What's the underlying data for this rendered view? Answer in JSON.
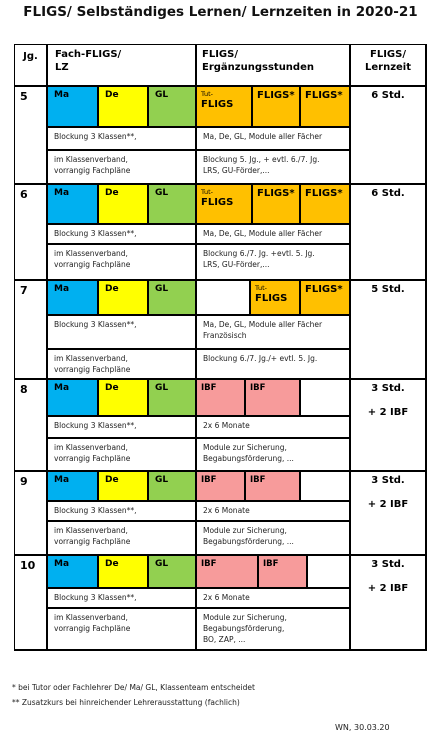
{
  "title": "FLIGS/ Selbständiges Lernen/ Lernzeiten in 2020-21",
  "header": {
    "jg": "Jg.",
    "fach": [
      "Fach-FLIGS/",
      "LZ"
    ],
    "erg": [
      "FLIGS/",
      "Ergänzungsstunden"
    ],
    "lernzeit": [
      "FLIGS/",
      "Lernzeit"
    ]
  },
  "grades": [
    {
      "jg": "5",
      "fach": [
        {
          "text": "Ma",
          "color": "#00b0f0"
        },
        {
          "text": "De",
          "color": "#ffff00"
        },
        {
          "text": "GL",
          "color": "#92d050"
        }
      ],
      "erg": [
        {
          "tut": "Tut-",
          "text": "FLIGS",
          "color": "#ffc000"
        },
        {
          "text": "FLIGS*",
          "color": "#ffc000"
        },
        {
          "text": "FLIGS*",
          "color": "#ffc000"
        }
      ],
      "lernzeit": [
        "6 Std."
      ],
      "blockung": [
        "Blockung 3 Klassen**,"
      ],
      "blockung_erg": [
        "Ma, De, GL, Module aller Fächer"
      ],
      "verband": [
        "im Klassenverband,",
        "vorrangig Fachpläne"
      ],
      "verband_erg": [
        "Blockung 5. Jg., + evtl. 6./7. Jg.",
        "LRS, GU-Förder,..."
      ]
    },
    {
      "jg": "6",
      "fach": [
        {
          "text": "Ma",
          "color": "#00b0f0"
        },
        {
          "text": "De",
          "color": "#ffff00"
        },
        {
          "text": "GL",
          "color": "#92d050"
        }
      ],
      "erg": [
        {
          "tut": "Tut-",
          "text": "FLIGS",
          "color": "#ffc000"
        },
        {
          "text": "FLIGS*",
          "color": "#ffc000"
        },
        {
          "text": "FLIGS*",
          "color": "#ffc000"
        }
      ],
      "lernzeit": [
        "6  Std."
      ],
      "blockung": [
        "Blockung 3 Klassen**,"
      ],
      "blockung_erg": [
        "Ma, De, GL, Module aller Fächer"
      ],
      "verband": [
        "im Klassenverband,",
        "vorrangig Fachpläne"
      ],
      "verband_erg": [
        "Blockung 6./7. Jg. +evtl. 5. Jg.",
        "LRS, GU-Förder,..."
      ]
    },
    {
      "jg": "7",
      "fach": [
        {
          "text": "Ma",
          "color": "#00b0f0"
        },
        {
          "text": "De",
          "color": "#ffff00"
        },
        {
          "text": "GL",
          "color": "#92d050"
        }
      ],
      "erg": [
        {
          "color": "#ffffff"
        },
        {
          "tut": "Tut-",
          "text": "FLIGS",
          "color": "#ffc000"
        },
        {
          "text": "FLIGS*",
          "color": "#ffc000"
        }
      ],
      "lernzeit": [
        "5  Std."
      ],
      "blockung": [
        "Blockung 3 Klassen**,"
      ],
      "blockung_erg": [
        "Ma, De, GL, Module aller Fächer",
        "Französisch"
      ],
      "verband": [
        "im Klassenverband,",
        "vorrangig Fachpläne"
      ],
      "verband_erg": [
        "Blockung 6./7. Jg./+ evtl. 5. Jg."
      ]
    },
    {
      "jg": "8",
      "fach": [
        {
          "text": "Ma",
          "color": "#00b0f0"
        },
        {
          "text": "De",
          "color": "#ffff00"
        },
        {
          "text": "GL",
          "color": "#92d050"
        }
      ],
      "erg": [
        {
          "text": "IBF",
          "color": "#f79b9b"
        },
        {
          "text": "IBF",
          "color": "#f79b9b"
        },
        {
          "color": "#ffffff"
        }
      ],
      "lernzeit": [
        "3  Std.",
        "+ 2 IBF"
      ],
      "blockung": [
        "Blockung 3 Klassen**,"
      ],
      "blockung_erg": [
        "2x 6 Monate"
      ],
      "verband": [
        "im Klassenverband,",
        "vorrangig Fachpläne"
      ],
      "verband_erg": [
        "Module zur Sicherung,",
        "Begabungsförderung, ..."
      ]
    },
    {
      "jg": "9",
      "fach": [
        {
          "text": "Ma",
          "color": "#00b0f0"
        },
        {
          "text": "De",
          "color": "#ffff00"
        },
        {
          "text": "GL",
          "color": "#92d050"
        }
      ],
      "erg": [
        {
          "text": "IBF",
          "color": "#f79b9b"
        },
        {
          "text": "IBF",
          "color": "#f79b9b"
        },
        {
          "color": "#ffffff"
        }
      ],
      "lernzeit": [
        "3  Std.",
        "+ 2 IBF"
      ],
      "blockung": [
        "Blockung 3 Klassen**,"
      ],
      "blockung_erg": [
        "2x 6 Monate"
      ],
      "verband": [
        "im Klassenverband,",
        "vorrangig Fachpläne"
      ],
      "verband_erg": [
        "Module zur Sicherung,",
        "Begabungsförderung, ..."
      ]
    },
    {
      "jg": "10",
      "fach": [
        {
          "text": "Ma",
          "color": "#00b0f0"
        },
        {
          "text": "De",
          "color": "#ffff00"
        },
        {
          "text": "GL",
          "color": "#92d050"
        }
      ],
      "erg": [
        {
          "text": "IBF",
          "color": "#f79b9b"
        },
        {
          "text": "IBF",
          "color": "#f79b9b"
        },
        {
          "color": "#ffffff"
        }
      ],
      "lernzeit": [
        "3  Std.",
        "+ 2 IBF"
      ],
      "blockung": [
        "Blockung 3 Klassen**,"
      ],
      "blockung_erg": [
        "2x 6 Monate"
      ],
      "verband": [
        "im Klassenverband,",
        "vorrangig Fachpläne"
      ],
      "verband_erg": [
        "Module zur Sicherung,",
        "Begabungsförderung,",
        "BO, ZAP, ..."
      ]
    }
  ],
  "footnotes": [
    "* bei Tutor oder Fachlehrer De/ Ma/ GL, Klassenteam entscheidet",
    "** Zusatzkurs bei hinreichender Lehrerausstattung (fachlich)"
  ],
  "signature": "WN, 30.03.20"
}
